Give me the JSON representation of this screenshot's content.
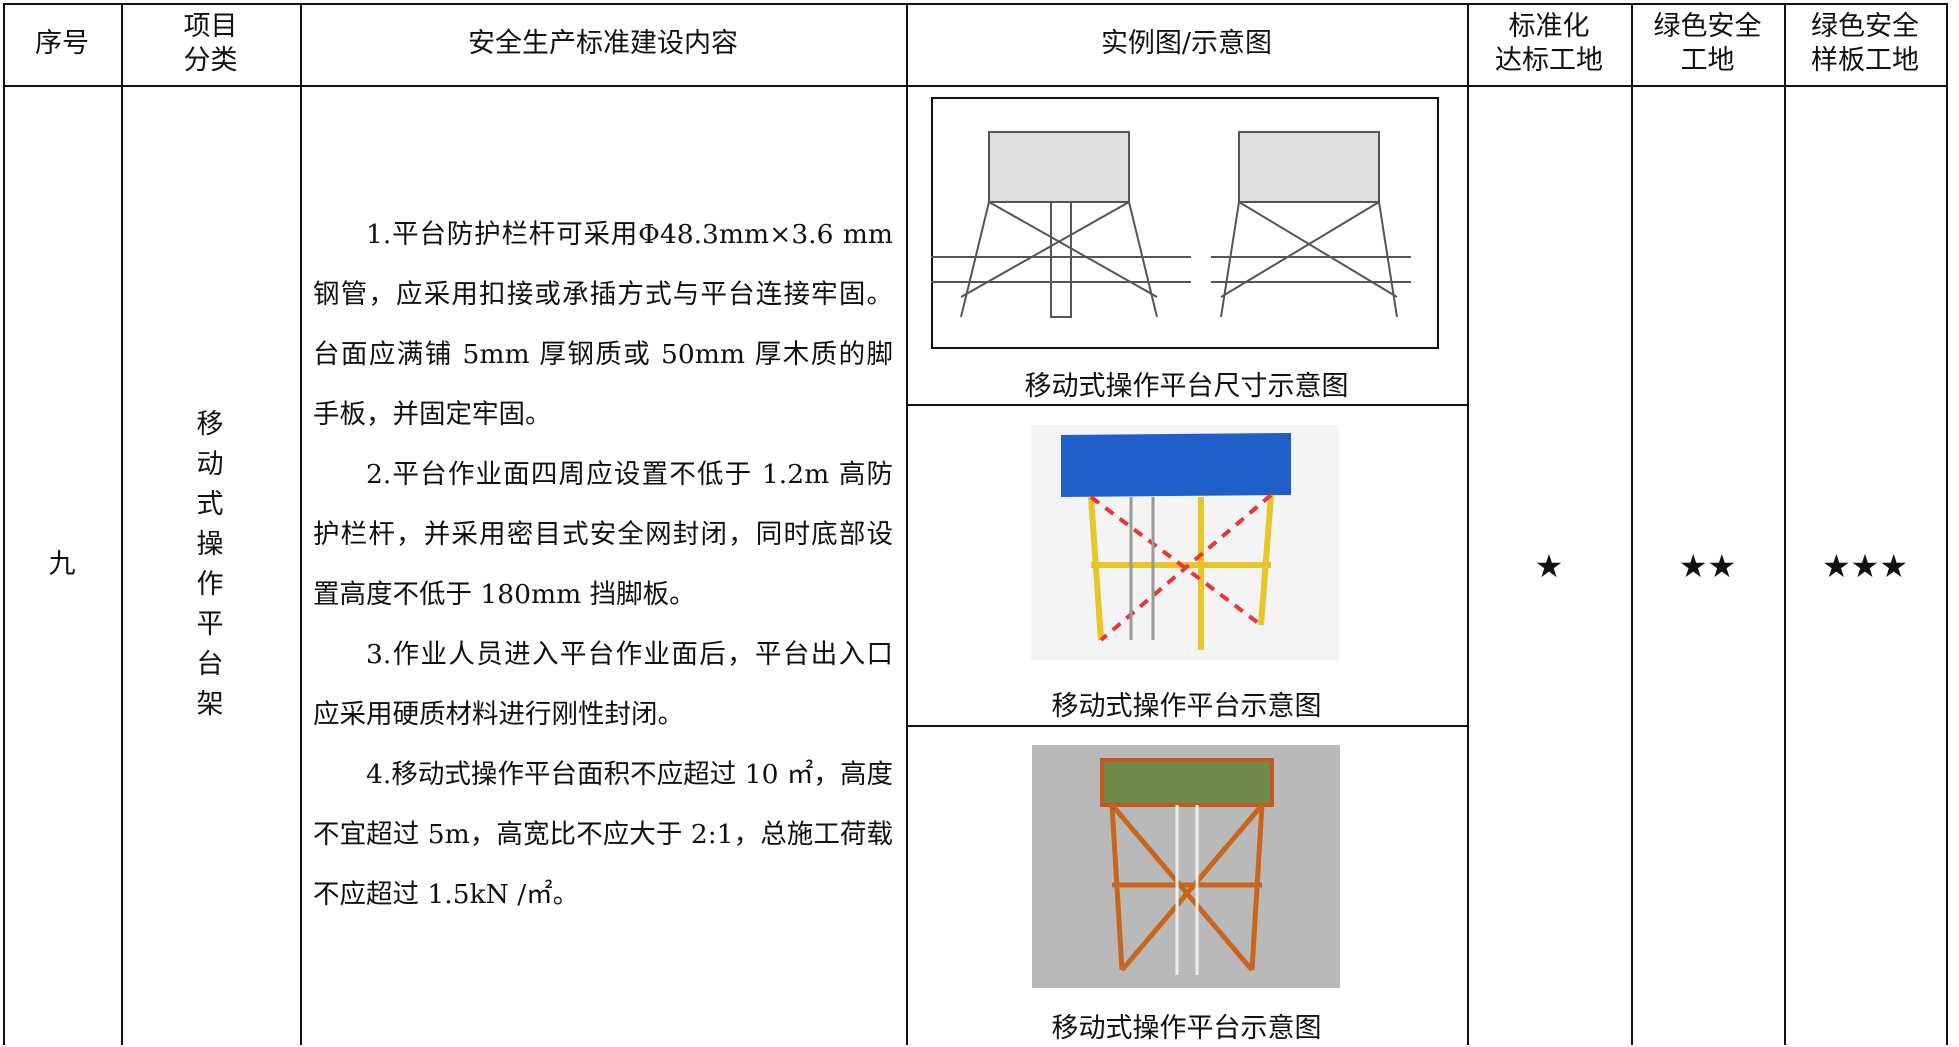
{
  "header": {
    "cells": [
      {
        "lines": [
          "序号"
        ]
      },
      {
        "lines": [
          "项目",
          "分类"
        ]
      },
      {
        "lines": [
          "安全生产标准建设内容"
        ]
      },
      {
        "lines": [
          "实例图/示意图"
        ]
      },
      {
        "lines": [
          "标准化",
          "达标工地"
        ]
      },
      {
        "lines": [
          "绿色安全",
          "工地"
        ]
      },
      {
        "lines": [
          "绿色安全",
          "样板工地"
        ]
      }
    ]
  },
  "row": {
    "number": "九",
    "category": "移动式操作平台架",
    "content": [
      "1.平台防护栏杆可采用Φ48.3mm×3.6 mm 钢管，应采用扣接或承插方式与平台连接牢固。台面应满铺 5mm 厚钢质或 50mm 厚木质的脚手板，并固定牢固。",
      "2.平台作业面四周应设置不低于 1.2m 高防护栏杆，并采用密目式安全网封闭，同时底部设置高度不低于 180mm 挡脚板。",
      "3.作业人员进入平台作业面后，平台出入口应采用硬质材料进行刚性封闭。",
      "4.移动式操作平台面积不应超过 10 ㎡，高度不宜超过 5m，高宽比不应大于 2:1，总施工荷载不应超过 1.5kN /㎡。"
    ],
    "captions": [
      "移动式操作平台尺寸示意图",
      "移动式操作平台示意图",
      "移动式操作平台示意图"
    ],
    "ratings": [
      "★",
      "★★",
      "★★★"
    ]
  }
}
